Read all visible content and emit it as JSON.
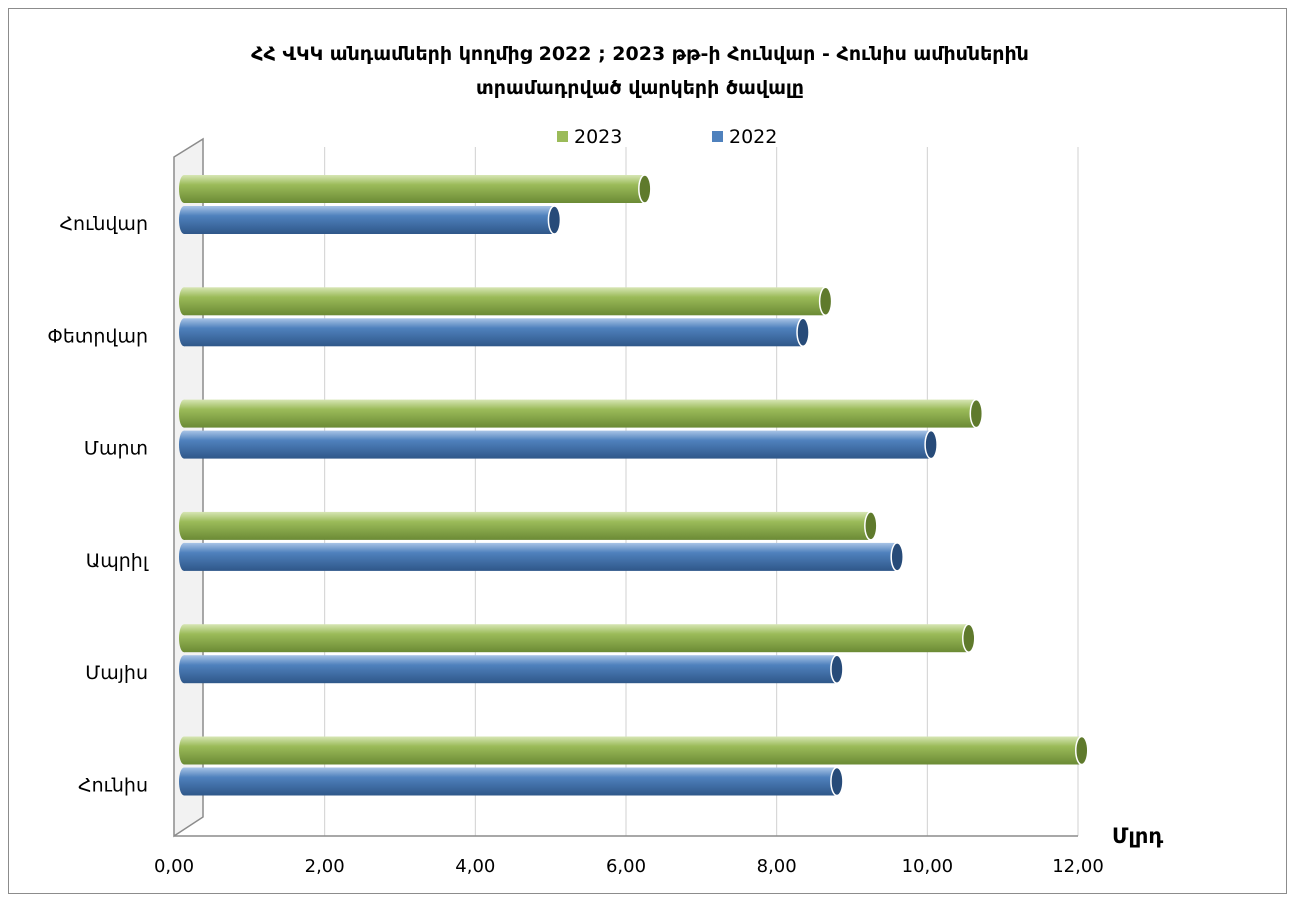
{
  "chart_data": {
    "type": "bar",
    "orientation": "horizontal",
    "title_line1": "ՀՀ ՎԿԿ անդամների կողմից 2022 ; 2023 թթ-ի Հունվար - Հունիս  ամիսներին",
    "title_line2": "տրամադրված վարկերի ծավալը",
    "unit_label": "Մլրդ",
    "categories": [
      "Հունվար",
      "Փետրվար",
      "Մարտ",
      "Ապրիլ",
      "Մայիս",
      "Հունիս"
    ],
    "series": [
      {
        "name": "2023",
        "color": "#9bbb59",
        "values": [
          6.25,
          8.65,
          10.65,
          9.25,
          10.55,
          12.05
        ]
      },
      {
        "name": "2022",
        "color": "#4f81bd",
        "values": [
          5.05,
          8.35,
          10.05,
          9.6,
          8.8,
          8.8
        ]
      }
    ],
    "xlim": [
      0,
      12
    ],
    "x_ticks": [
      "0,00",
      "2,00",
      "4,00",
      "6,00",
      "8,00",
      "10,00",
      "12,00"
    ],
    "grid": true,
    "legend_position": "top"
  }
}
